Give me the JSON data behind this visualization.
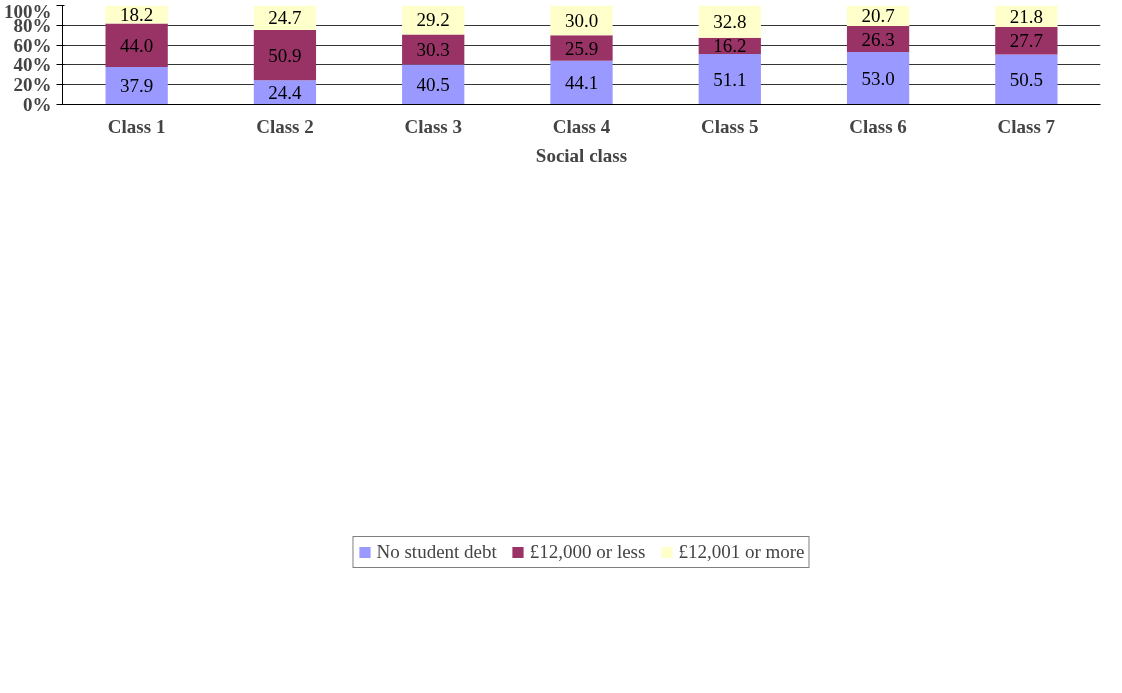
{
  "chart_data": {
    "type": "bar",
    "stacked": true,
    "xlabel": "Social class",
    "categories": [
      "Class 1",
      "Class 2",
      "Class 3",
      "Class 4",
      "Class 5",
      "Class 6",
      "Class 7"
    ],
    "series": [
      {
        "name": "No student debt",
        "color": "#9999ff",
        "values": [
          37.9,
          24.4,
          40.5,
          44.1,
          51.1,
          53.0,
          50.5
        ],
        "value_labels": [
          "37.9",
          "24.4",
          "40.5",
          "44.1",
          "51.1",
          "53.0",
          "50.5"
        ]
      },
      {
        "name": "£12,000 or less",
        "color": "#993366",
        "values": [
          44.0,
          50.9,
          30.3,
          25.9,
          16.2,
          26.3,
          27.7
        ],
        "value_labels": [
          "44.0",
          "50.9",
          "30.3",
          "25.9",
          "16.2",
          "26.3",
          "27.7"
        ]
      },
      {
        "name": "£12,001 or more",
        "color": "#ffffcc",
        "values": [
          18.2,
          24.7,
          29.2,
          30.0,
          32.8,
          20.7,
          21.8
        ],
        "value_labels": [
          "18.2",
          "24.7",
          "29.2",
          "30.0",
          "32.8",
          "20.7",
          "21.8"
        ]
      }
    ],
    "ylim": [
      0,
      100
    ],
    "yticks": [
      {
        "value": 0,
        "label": "0%"
      },
      {
        "value": 20,
        "label": "20%"
      },
      {
        "value": 40,
        "label": "40%"
      },
      {
        "value": 60,
        "label": "60%"
      },
      {
        "value": 80,
        "label": "80%"
      },
      {
        "value": 100,
        "label": "100%"
      }
    ],
    "grid": "y",
    "legend": "bottom"
  }
}
